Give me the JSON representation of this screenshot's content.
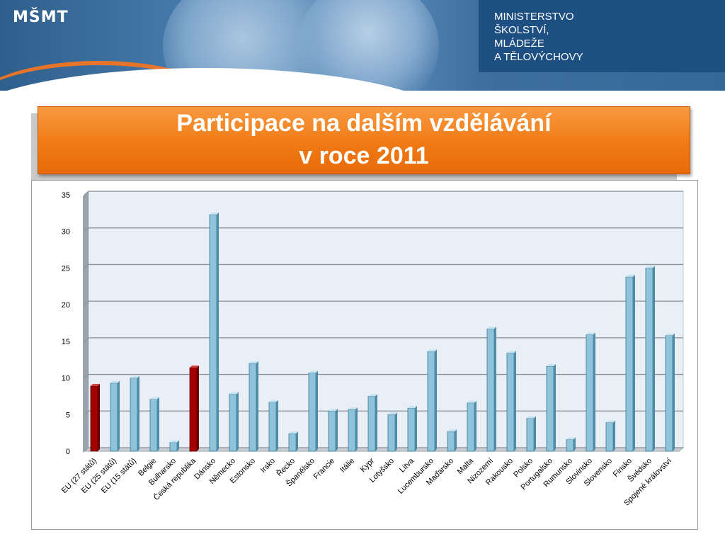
{
  "header": {
    "logo_text": "MŠMT",
    "ministry_lines": [
      "MINISTERSTVO",
      "ŠKOLSTVÍ,",
      "MLÁDEŽE",
      "A TĚLOVÝCHOVY"
    ]
  },
  "title": {
    "line1": "Participace na dalším vzdělávání",
    "line2": "v roce 2011"
  },
  "colors": {
    "bar_default": "#8fc3dc",
    "bar_highlight": "#a50000",
    "title_bg": "#f07a15",
    "header_panel": "#1e4f83"
  },
  "chart_data": {
    "type": "bar",
    "title": "",
    "xlabel": "",
    "ylabel": "",
    "ylim": [
      0,
      35
    ],
    "yticks": [
      0,
      5,
      10,
      15,
      20,
      25,
      30,
      35
    ],
    "grid": true,
    "legend": "none",
    "highlighted": [
      "EU (27 států)",
      "Česká republika"
    ],
    "categories": [
      "EU (27 států)",
      "EU (25 států)",
      "EU (15 států)",
      "Belgie",
      "Bulharsko",
      "Česká republika",
      "Dánsko",
      "Německo",
      "Estonsko",
      "Irsko",
      "Řecko",
      "Španělsko",
      "Francie",
      "Itálie",
      "Kypr",
      "Lotyšsko",
      "Litva",
      "Lucembursko",
      "Maďarsko",
      "Malta",
      "Nizozemí",
      "Rakousko",
      "Polsko",
      "Portugalsko",
      "Rumunsko",
      "Slovinsko",
      "Slovensko",
      "Finsko",
      "Švédsko",
      "Spojené království"
    ],
    "values": [
      8.9,
      9.3,
      10.0,
      7.1,
      1.2,
      11.4,
      32.3,
      7.8,
      12.0,
      6.7,
      2.4,
      10.7,
      5.5,
      5.7,
      7.5,
      5.0,
      5.9,
      13.6,
      2.7,
      6.6,
      16.7,
      13.4,
      4.5,
      11.6,
      1.6,
      15.9,
      3.9,
      23.8,
      25.0,
      15.8
    ]
  }
}
